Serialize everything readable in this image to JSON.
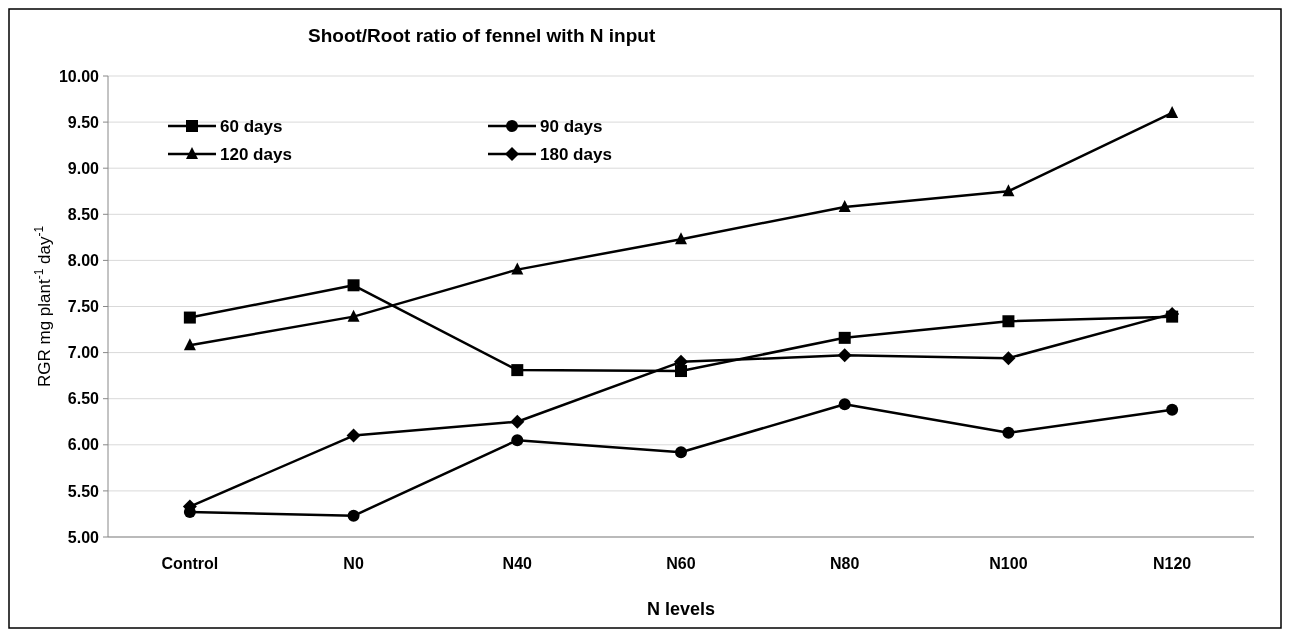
{
  "chart_data": {
    "type": "line",
    "title": "Shoot/Root ratio of fennel with N input",
    "xlabel": "N levels",
    "ylabel": "RGR mg plant$^{-1}$ day$^{-1}$",
    "categories": [
      "Control",
      "N0",
      "N40",
      "N60",
      "N80",
      "N100",
      "N120"
    ],
    "ylim": [
      5,
      10
    ],
    "yticks": [
      {
        "value": 5,
        "label": "5.00"
      },
      {
        "value": 5.5,
        "label": "5.50"
      },
      {
        "value": 6,
        "label": "6.00"
      },
      {
        "value": 6.5,
        "label": "6.50"
      },
      {
        "value": 7,
        "label": "7.00"
      },
      {
        "value": 7.5,
        "label": "7.50"
      },
      {
        "value": 8,
        "label": "8.00"
      },
      {
        "value": 8.5,
        "label": "8.50"
      },
      {
        "value": 9,
        "label": "9.00"
      },
      {
        "value": 9.5,
        "label": "9.50"
      },
      {
        "value": 10,
        "label": "10.00"
      }
    ],
    "grid": "y",
    "legend": "top left",
    "line_style": "solid",
    "series": [
      {
        "name": "60 days",
        "color": "#000000",
        "marker": "square",
        "values": [
          7.38,
          7.73,
          6.81,
          6.8,
          7.16,
          7.34,
          7.39
        ]
      },
      {
        "name": "90 days",
        "color": "#000000",
        "marker": "circle",
        "values": [
          5.27,
          5.23,
          6.05,
          5.92,
          6.44,
          6.13,
          6.38
        ]
      },
      {
        "name": "120 days",
        "color": "#000000",
        "marker": "triangle",
        "values": [
          7.08,
          7.39,
          7.9,
          8.23,
          8.58,
          8.75,
          9.6
        ]
      },
      {
        "name": "180 days",
        "color": "#000000",
        "marker": "diamond",
        "values": [
          5.33,
          6.1,
          6.25,
          6.9,
          6.97,
          6.94,
          7.42
        ]
      }
    ]
  }
}
